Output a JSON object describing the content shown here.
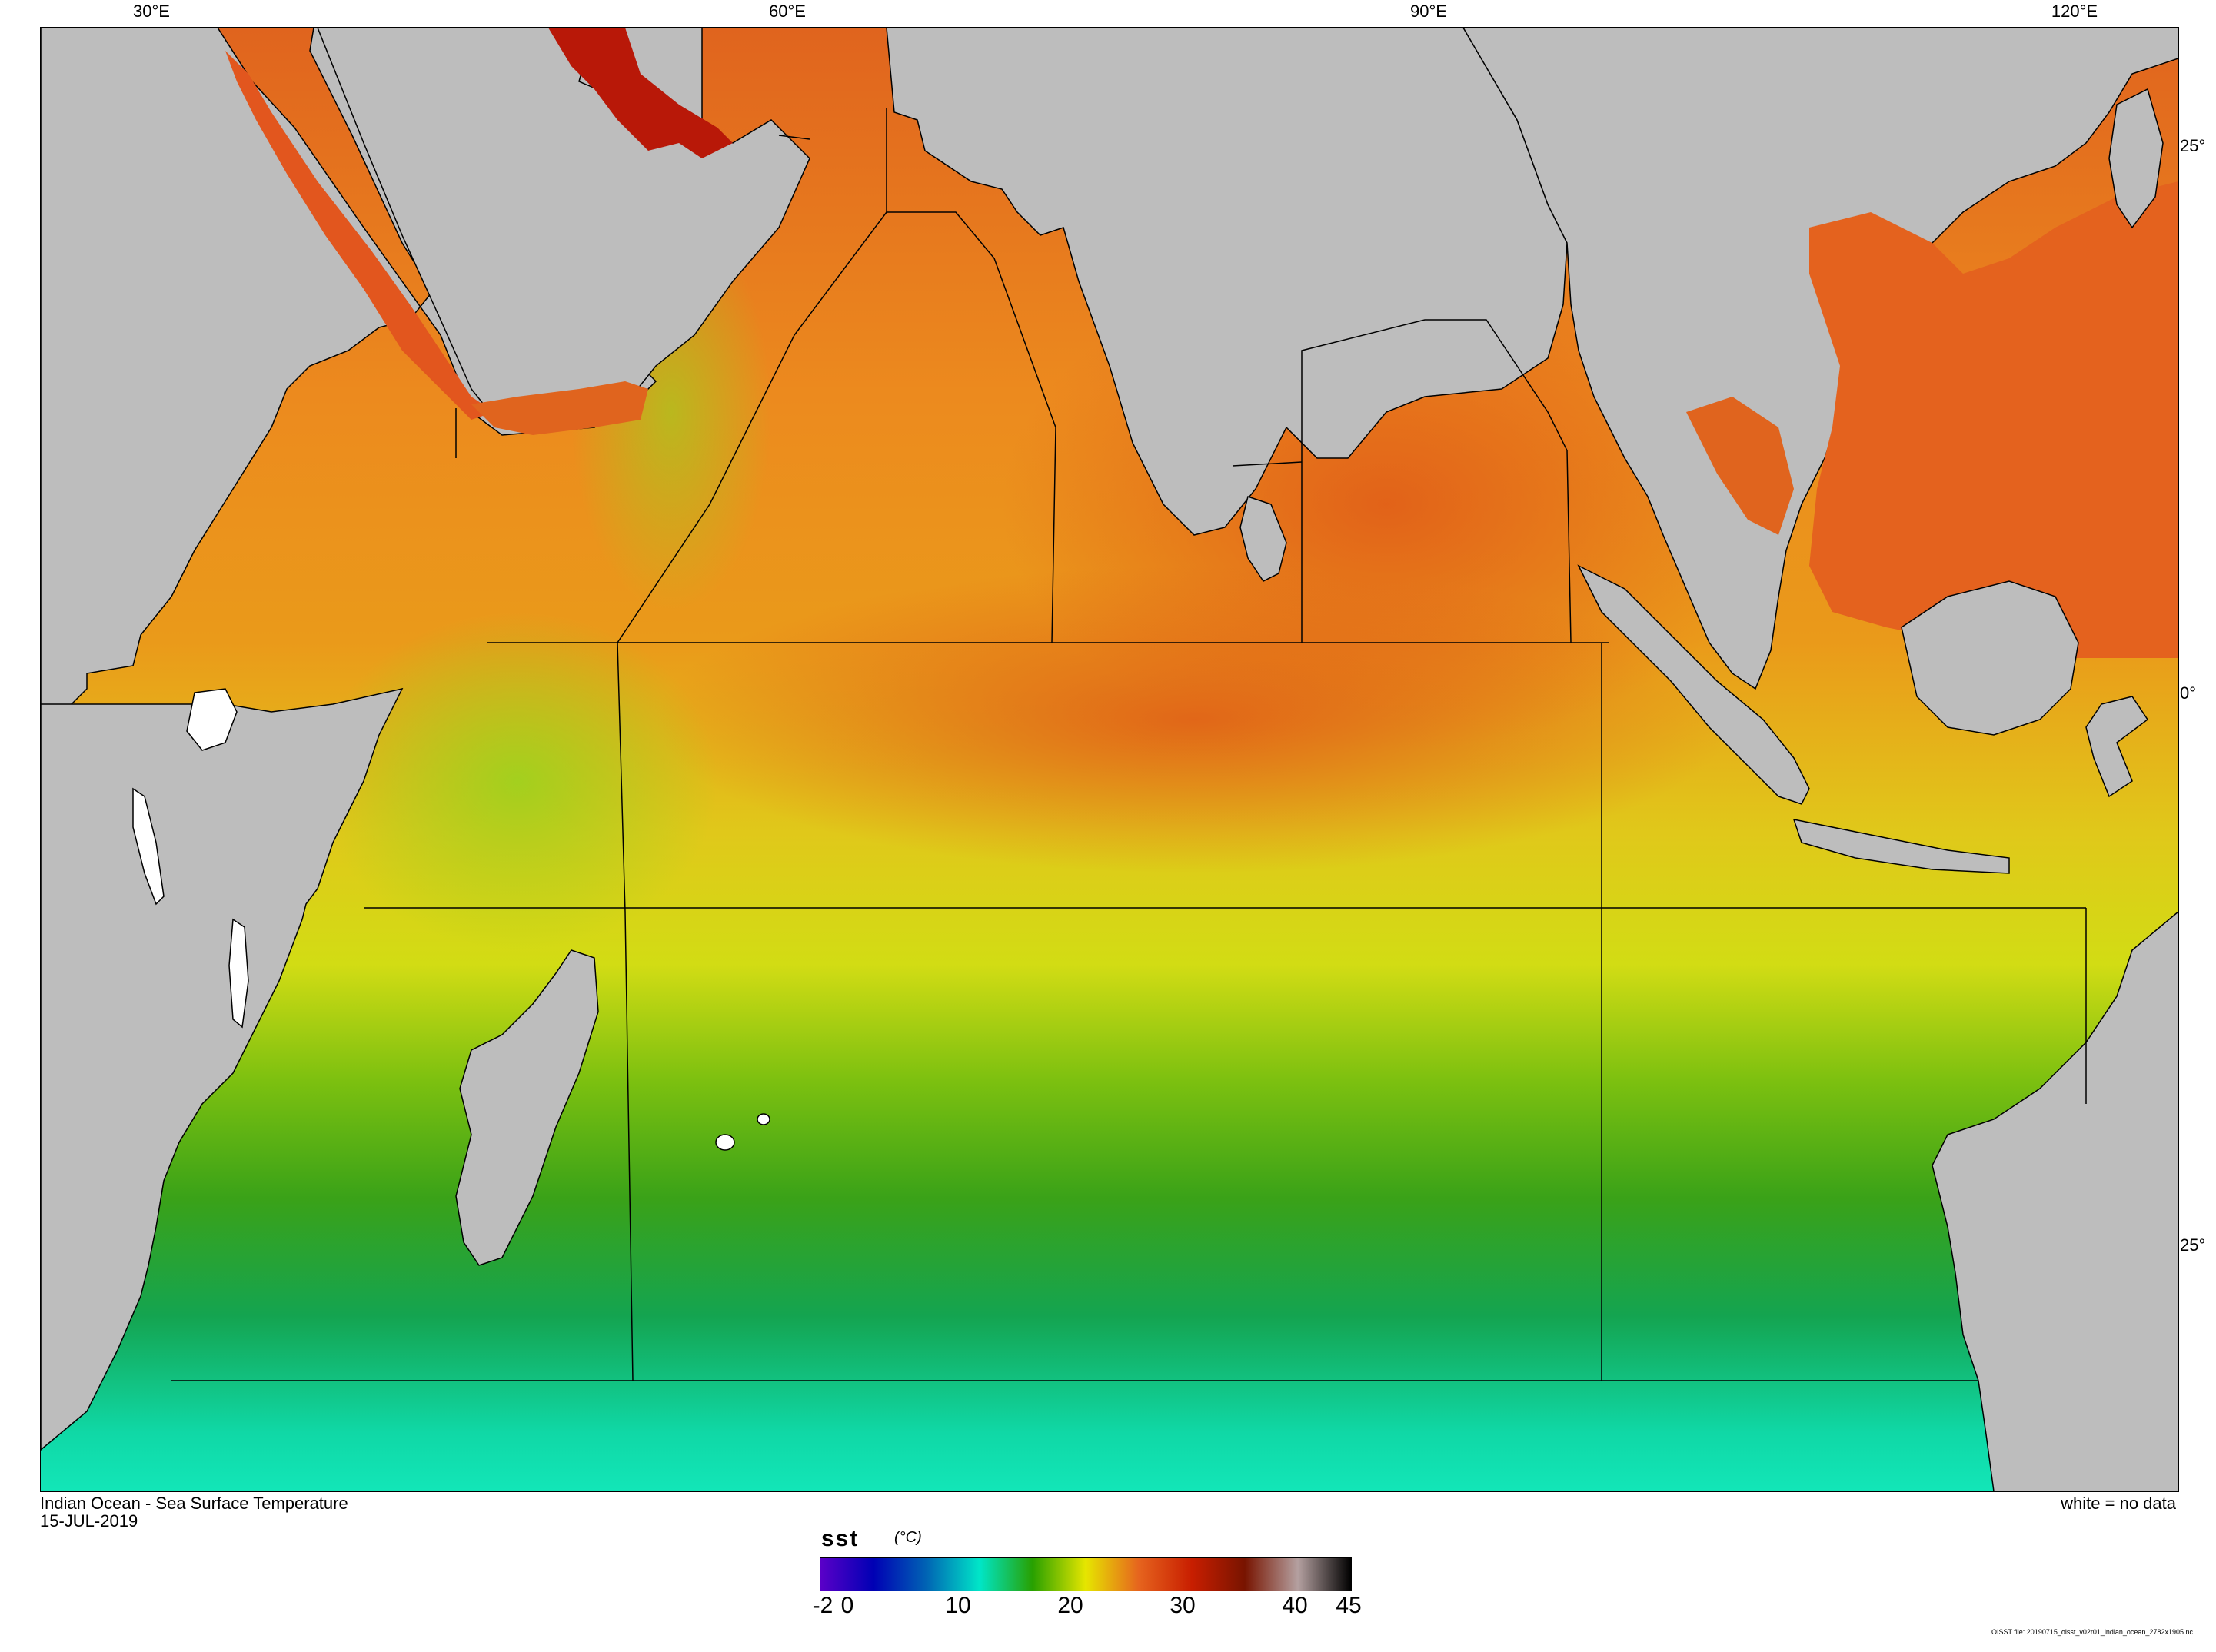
{
  "map": {
    "top_labels": [
      "30°E",
      "60°E",
      "90°E",
      "120°E"
    ],
    "right_labels": [
      "25°",
      "0°",
      "25°"
    ]
  },
  "caption": {
    "title": "Indian Ocean - Sea Surface Temperature",
    "date": "15-JUL-2019",
    "nodata_note": "white = no data"
  },
  "colorbar": {
    "variable": "sst",
    "units": "(°C)",
    "min": -2,
    "max": 45,
    "tick_labels": [
      "-2",
      "0",
      "10",
      "20",
      "30",
      "40",
      "45"
    ],
    "colors": [
      "#5a00c8",
      "#0000b4",
      "#0064b4",
      "#00e6c8",
      "#28a000",
      "#e6e600",
      "#e6641e",
      "#c81e00",
      "#781400",
      "#b4a0a0",
      "#000000"
    ]
  },
  "file_note": "OISST file: 20190715_oisst_v02r01_indian_ocean_2782x1905.nc"
}
